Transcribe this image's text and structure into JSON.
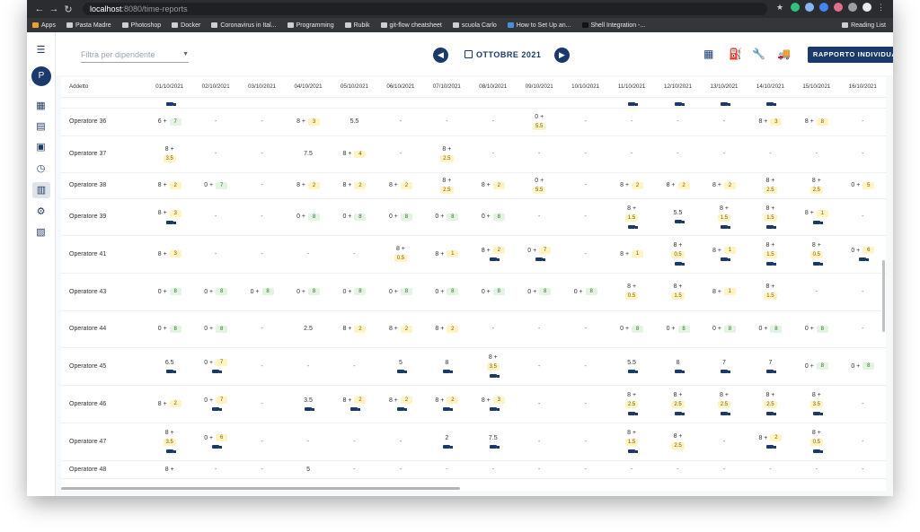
{
  "browser": {
    "url_host": "localhost",
    "url_path": ":8080/time-reports",
    "bookmarks": [
      "Apps",
      "Pasta Madre",
      "Photoshop",
      "Docker",
      "Coronavirus in Ital...",
      "Programming",
      "Rubik",
      "git-flow cheatsheet",
      "scuola Carlo",
      "How to Set Up an...",
      "Shell Integration -..."
    ],
    "reading_list": "Reading List"
  },
  "sidebar": {
    "avatar_initial": "P"
  },
  "toolbar": {
    "filter_placeholder": "Filtra per dipendente",
    "month": "OTTOBRE 2021",
    "report_button": "RAPPORTO INDIVIDUALE"
  },
  "table": {
    "header_employee": "Addetto",
    "dates": [
      "01/10/2021",
      "02/10/2021",
      "03/10/2021",
      "04/10/2021",
      "05/10/2021",
      "06/10/2021",
      "07/10/2021",
      "08/10/2021",
      "09/10/2021",
      "10/10/2021",
      "11/10/2021",
      "12/10/2021",
      "13/10/2021",
      "14/10/2021",
      "15/10/2021",
      "16/10/2021"
    ],
    "rows": [
      {
        "name": "",
        "cells": [
          [
            "",
            "",
            "t"
          ],
          [
            "",
            "",
            ""
          ],
          [
            "",
            "",
            ""
          ],
          [
            "",
            "",
            ""
          ],
          [
            "",
            "",
            ""
          ],
          [
            "",
            "",
            ""
          ],
          [
            "",
            "",
            ""
          ],
          [
            "",
            "",
            ""
          ],
          [
            "",
            "",
            ""
          ],
          [
            "",
            "",
            ""
          ],
          [
            "",
            "",
            "t"
          ],
          [
            "",
            "",
            "t"
          ],
          [
            "",
            "",
            "t"
          ],
          [
            "",
            "",
            "t"
          ],
          [
            "",
            "",
            ""
          ],
          [
            "",
            "",
            ""
          ]
        ]
      },
      {
        "name": "Operatore 36",
        "cells": [
          [
            "6 +",
            "7g",
            ""
          ],
          [
            "-",
            "",
            ""
          ],
          [
            "-",
            "",
            ""
          ],
          [
            "8 +",
            "3y",
            ""
          ],
          [
            "5.5",
            "",
            ""
          ],
          [
            "-",
            "",
            ""
          ],
          [
            "-",
            "",
            ""
          ],
          [
            "-",
            "",
            ""
          ],
          [
            "0 +",
            "5.5y",
            ""
          ],
          [
            "-",
            "",
            ""
          ],
          [
            "-",
            "",
            ""
          ],
          [
            "-",
            "",
            ""
          ],
          [
            "-",
            "",
            ""
          ],
          [
            "8 +",
            "3y",
            ""
          ],
          [
            "8 +",
            "8y",
            ""
          ],
          [
            "-",
            "",
            ""
          ]
        ]
      },
      {
        "name": "Operatore 37",
        "cells": [
          [
            "8 +",
            "3.5y",
            ""
          ],
          [
            "-",
            "",
            ""
          ],
          [
            "-",
            "",
            ""
          ],
          [
            "7.5",
            "",
            ""
          ],
          [
            "8 +",
            "4y",
            ""
          ],
          [
            "-",
            "",
            ""
          ],
          [
            "8 +",
            "2.5y",
            ""
          ],
          [
            "-",
            "",
            ""
          ],
          [
            "-",
            "",
            ""
          ],
          [
            "-",
            "",
            ""
          ],
          [
            "-",
            "",
            ""
          ],
          [
            "-",
            "",
            ""
          ],
          [
            "-",
            "",
            ""
          ],
          [
            "-",
            "",
            ""
          ],
          [
            "-",
            "",
            ""
          ],
          [
            "-",
            "",
            ""
          ]
        ]
      },
      {
        "name": "Operatore 38",
        "cells": [
          [
            "8 +",
            "2y",
            ""
          ],
          [
            "0 +",
            "7g",
            ""
          ],
          [
            "-",
            "",
            ""
          ],
          [
            "8 +",
            "2y",
            ""
          ],
          [
            "8 +",
            "2y",
            ""
          ],
          [
            "8 +",
            "2y",
            ""
          ],
          [
            "8 +",
            "2.5y",
            ""
          ],
          [
            "8 +",
            "2y",
            ""
          ],
          [
            "0 +",
            "5.5y",
            ""
          ],
          [
            "-",
            "",
            ""
          ],
          [
            "8 +",
            "2y",
            ""
          ],
          [
            "8 +",
            "2y",
            ""
          ],
          [
            "8 +",
            "2y",
            ""
          ],
          [
            "8 +",
            "2.5y",
            ""
          ],
          [
            "8 +",
            "2.5y",
            ""
          ],
          [
            "0 +",
            "5y",
            ""
          ]
        ]
      },
      {
        "name": "Operatore 39",
        "cells": [
          [
            "8 +",
            "3y",
            "t"
          ],
          [
            "-",
            "",
            ""
          ],
          [
            "-",
            "",
            ""
          ],
          [
            "0 +",
            "8g",
            ""
          ],
          [
            "0 +",
            "8g",
            ""
          ],
          [
            "0 +",
            "8g",
            ""
          ],
          [
            "0 +",
            "8g",
            ""
          ],
          [
            "0 +",
            "8g",
            ""
          ],
          [
            "-",
            "",
            ""
          ],
          [
            "-",
            "",
            ""
          ],
          [
            "8 +",
            "1.5y",
            "t"
          ],
          [
            "5.5",
            "",
            "t"
          ],
          [
            "8 +",
            "1.5y",
            "t"
          ],
          [
            "8 +",
            "1.5y",
            "t"
          ],
          [
            "8 +",
            "1y",
            "t"
          ],
          [
            "-",
            "",
            ""
          ]
        ]
      },
      {
        "name": "Operatore 41",
        "cells": [
          [
            "8 +",
            "3y",
            ""
          ],
          [
            "-",
            "",
            ""
          ],
          [
            "-",
            "",
            ""
          ],
          [
            "-",
            "",
            ""
          ],
          [
            "-",
            "",
            ""
          ],
          [
            "8 +",
            "0.5y",
            ""
          ],
          [
            "8 +",
            "1y",
            ""
          ],
          [
            "8 +",
            "2y",
            "t"
          ],
          [
            "0 +",
            "7y",
            "t"
          ],
          [
            "-",
            "",
            ""
          ],
          [
            "8 +",
            "1y",
            ""
          ],
          [
            "8 +",
            "0.5y",
            "t"
          ],
          [
            "8 +",
            "1y",
            "t"
          ],
          [
            "8 +",
            "1.5y",
            "t"
          ],
          [
            "8 +",
            "0.5y",
            "t"
          ],
          [
            "0 +",
            "6y",
            "t"
          ]
        ]
      },
      {
        "name": "Operatore 43",
        "cells": [
          [
            "0 +",
            "8g",
            ""
          ],
          [
            "0 +",
            "8g",
            ""
          ],
          [
            "0 +",
            "8g",
            ""
          ],
          [
            "0 +",
            "8g",
            ""
          ],
          [
            "0 +",
            "8g",
            ""
          ],
          [
            "0 +",
            "8g",
            ""
          ],
          [
            "0 +",
            "8g",
            ""
          ],
          [
            "0 +",
            "8g",
            ""
          ],
          [
            "0 +",
            "8g",
            ""
          ],
          [
            "0 +",
            "8g",
            ""
          ],
          [
            "8 +",
            "0.5y",
            ""
          ],
          [
            "8 +",
            "1.5y",
            ""
          ],
          [
            "8 +",
            "1y",
            ""
          ],
          [
            "8 +",
            "1.5y",
            ""
          ],
          [
            "-",
            "",
            ""
          ],
          [
            "-",
            "",
            ""
          ]
        ]
      },
      {
        "name": "Operatore 44",
        "cells": [
          [
            "0 +",
            "8g",
            ""
          ],
          [
            "0 +",
            "8g",
            ""
          ],
          [
            "-",
            "",
            ""
          ],
          [
            "2.5",
            "",
            ""
          ],
          [
            "8 +",
            "2y",
            ""
          ],
          [
            "8 +",
            "2y",
            ""
          ],
          [
            "8 +",
            "2y",
            ""
          ],
          [
            "-",
            "",
            ""
          ],
          [
            "-",
            "",
            ""
          ],
          [
            "-",
            "",
            ""
          ],
          [
            "0 +",
            "8g",
            ""
          ],
          [
            "0 +",
            "8g",
            ""
          ],
          [
            "0 +",
            "8g",
            ""
          ],
          [
            "0 +",
            "8g",
            ""
          ],
          [
            "0 +",
            "8g",
            ""
          ],
          [
            "-",
            "",
            ""
          ]
        ]
      },
      {
        "name": "Operatore 45",
        "cells": [
          [
            "6.5",
            "",
            "t"
          ],
          [
            "0 +",
            "7y",
            "t"
          ],
          [
            "-",
            "",
            ""
          ],
          [
            "-",
            "",
            ""
          ],
          [
            "-",
            "",
            ""
          ],
          [
            "5",
            "",
            "t"
          ],
          [
            "8",
            "",
            "t"
          ],
          [
            "8 +",
            "3.5y",
            "t"
          ],
          [
            "-",
            "",
            ""
          ],
          [
            "-",
            "",
            ""
          ],
          [
            "5.5",
            "",
            "t"
          ],
          [
            "8",
            "",
            "t"
          ],
          [
            "7",
            "",
            "t"
          ],
          [
            "7",
            "",
            "t"
          ],
          [
            "0 +",
            "8g",
            ""
          ],
          [
            "0 +",
            "8g",
            ""
          ]
        ]
      },
      {
        "name": "Operatore 46",
        "cells": [
          [
            "8 +",
            "2y",
            ""
          ],
          [
            "0 +",
            "7y",
            "t"
          ],
          [
            "-",
            "",
            ""
          ],
          [
            "3.5",
            "",
            "t"
          ],
          [
            "8 +",
            "2y",
            "t"
          ],
          [
            "8 +",
            "2y",
            "t"
          ],
          [
            "8 +",
            "2y",
            "t"
          ],
          [
            "8 +",
            "3y",
            "t"
          ],
          [
            "-",
            "",
            ""
          ],
          [
            "-",
            "",
            ""
          ],
          [
            "8 +",
            "2.5y",
            "t"
          ],
          [
            "8 +",
            "2.5y",
            "t"
          ],
          [
            "8 +",
            "2.5y",
            "t"
          ],
          [
            "8 +",
            "2.5y",
            "t"
          ],
          [
            "8 +",
            "3.5y",
            "t"
          ],
          [
            "-",
            "",
            ""
          ]
        ]
      },
      {
        "name": "Operatore 47",
        "cells": [
          [
            "8 +",
            "3.5y",
            "t"
          ],
          [
            "0 +",
            "6y",
            "t"
          ],
          [
            "-",
            "",
            ""
          ],
          [
            "-",
            "",
            ""
          ],
          [
            "-",
            "",
            ""
          ],
          [
            "-",
            "",
            ""
          ],
          [
            "2",
            "",
            "t"
          ],
          [
            "7.5",
            "",
            "t"
          ],
          [
            "-",
            "",
            ""
          ],
          [
            "-",
            "",
            ""
          ],
          [
            "8 +",
            "1.5y",
            "t"
          ],
          [
            "8 +",
            "2.5y",
            ""
          ],
          [
            "-",
            "",
            ""
          ],
          [
            "8 +",
            "2y",
            "t"
          ],
          [
            "8 +",
            "0.5y",
            "t"
          ],
          [
            "-",
            "",
            ""
          ]
        ]
      },
      {
        "name": "Operatore 48",
        "cells": [
          [
            "8 +",
            "",
            ""
          ],
          [
            "-",
            "",
            ""
          ],
          [
            "-",
            "",
            ""
          ],
          [
            "5",
            "",
            ""
          ],
          [
            "-",
            "",
            ""
          ],
          [
            "-",
            "",
            ""
          ],
          [
            "-",
            "",
            ""
          ],
          [
            "-",
            "",
            ""
          ],
          [
            "-",
            "",
            ""
          ],
          [
            "-",
            "",
            ""
          ],
          [
            "-",
            "",
            ""
          ],
          [
            "-",
            "",
            ""
          ],
          [
            "-",
            "",
            ""
          ],
          [
            "-",
            "",
            ""
          ],
          [
            "-",
            "",
            ""
          ],
          [
            "-",
            "",
            ""
          ]
        ]
      }
    ]
  }
}
